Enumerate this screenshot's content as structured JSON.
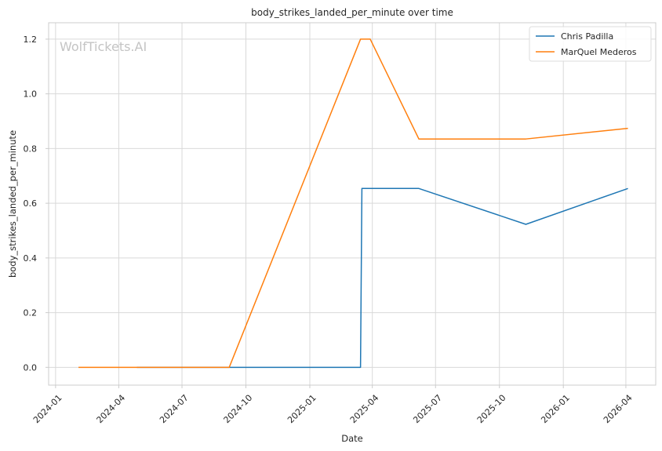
{
  "chart_data": {
    "type": "line",
    "title": "body_strikes_landed_per_minute over time",
    "xlabel": "Date",
    "ylabel": "body_strikes_landed_per_minute",
    "watermark": "WolfTickets.AI",
    "x_axis_kind": "date",
    "xlim": [
      "2023-12-22",
      "2026-05-14"
    ],
    "ylim": [
      -0.065,
      1.26
    ],
    "x_ticks": [
      "2024-01",
      "2024-04",
      "2024-07",
      "2024-10",
      "2025-01",
      "2025-04",
      "2025-07",
      "2025-10",
      "2026-01",
      "2026-04"
    ],
    "y_ticks": [
      0.0,
      0.2,
      0.4,
      0.6,
      0.8,
      1.0,
      1.2
    ],
    "y_tick_labels": [
      "0.0",
      "0.2",
      "0.4",
      "0.6",
      "0.8",
      "1.0",
      "1.2"
    ],
    "grid": true,
    "legend_position": "top-right",
    "series": [
      {
        "name": "Chris Padilla",
        "color": "#1f77b4",
        "points": [
          {
            "x": "2024-04-27",
            "y": 0.0
          },
          {
            "x": "2025-03-15",
            "y": 0.0
          },
          {
            "x": "2025-03-17",
            "y": 0.654
          },
          {
            "x": "2025-06-07",
            "y": 0.654
          },
          {
            "x": "2025-11-08",
            "y": 0.523
          },
          {
            "x": "2026-04-04",
            "y": 0.654
          }
        ]
      },
      {
        "name": "MarQuel Mederos",
        "color": "#ff7f0e",
        "points": [
          {
            "x": "2024-02-03",
            "y": 0.0
          },
          {
            "x": "2024-09-07",
            "y": 0.0
          },
          {
            "x": "2025-03-15",
            "y": 1.2
          },
          {
            "x": "2025-03-29",
            "y": 1.2
          },
          {
            "x": "2025-06-07",
            "y": 0.835
          },
          {
            "x": "2025-11-08",
            "y": 0.835
          },
          {
            "x": "2026-04-04",
            "y": 0.874
          }
        ]
      }
    ]
  }
}
